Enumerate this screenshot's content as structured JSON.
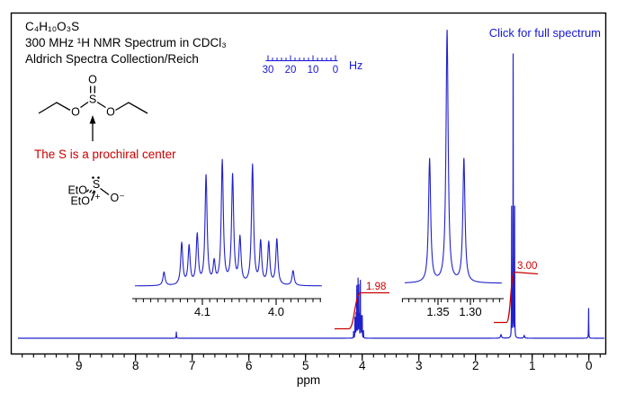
{
  "header": {
    "formula": "C₄H₁₀O₃S",
    "line2": "300 MHz ¹H NMR Spectrum in CDCl₃",
    "line3": "Aldrich Spectra Collection/Reich"
  },
  "link": {
    "label": "Click for full spectrum"
  },
  "caption": {
    "text": "The S is a prochiral center"
  },
  "structure": {
    "o_top": "O",
    "s": "S",
    "o_left": "O",
    "o_right": "O"
  },
  "zwitterion": {
    "eto_top": "EtO",
    "eto_bottom": "EtO",
    "s": "S",
    "plus": "+",
    "o_minus": "O⁻"
  },
  "colors": {
    "spectrum_blue": "#2121cc",
    "accent_blue": "#1717d6",
    "red": "#cc0000",
    "axis_black": "#000000"
  },
  "chart_data": {
    "type": "line",
    "title": "300 MHz 1H NMR spectrum of diethyl sulfite in CDCl3",
    "xlabel": "ppm",
    "x_axis": {
      "unit_label": "ppm",
      "range": [
        10.2,
        -0.32
      ],
      "minor_step": 0.2,
      "ticks": [
        {
          "label": "9",
          "ppm": 9
        },
        {
          "label": "8",
          "ppm": 8
        },
        {
          "label": "7",
          "ppm": 7
        },
        {
          "label": "6",
          "ppm": 6
        },
        {
          "label": "5",
          "ppm": 5
        },
        {
          "label": "4",
          "ppm": 4
        },
        {
          "label": "3",
          "ppm": 3
        },
        {
          "label": "2",
          "ppm": 2
        },
        {
          "label": "1",
          "ppm": 1
        },
        {
          "label": "0",
          "ppm": 0
        }
      ]
    },
    "peaks": [
      {
        "ppm": 7.28,
        "h": 0.022,
        "w": 0.0035
      },
      {
        "ppm": 4.152,
        "h": 0.023,
        "w": 0.002
      },
      {
        "ppm": 4.128,
        "h": 0.07,
        "w": 0.002
      },
      {
        "ppm": 4.118,
        "h": 0.064,
        "w": 0.002
      },
      {
        "ppm": 4.107,
        "h": 0.082,
        "w": 0.002
      },
      {
        "ppm": 4.095,
        "h": 0.18,
        "w": 0.002
      },
      {
        "ppm": 4.084,
        "h": 0.035,
        "w": 0.002
      },
      {
        "ppm": 4.073,
        "h": 0.205,
        "w": 0.002
      },
      {
        "ppm": 4.059,
        "h": 0.18,
        "w": 0.002
      },
      {
        "ppm": 4.049,
        "h": 0.076,
        "w": 0.002
      },
      {
        "ppm": 4.032,
        "h": 0.199,
        "w": 0.002
      },
      {
        "ppm": 4.021,
        "h": 0.07,
        "w": 0.002
      },
      {
        "ppm": 4.01,
        "h": 0.07,
        "w": 0.002
      },
      {
        "ppm": 3.999,
        "h": 0.076,
        "w": 0.002
      },
      {
        "ppm": 3.977,
        "h": 0.025,
        "w": 0.002
      },
      {
        "ppm": 1.55,
        "h": 0.013,
        "w": 0.01
      },
      {
        "ppm": 1.363,
        "h": 0.46,
        "w": 0.0022
      },
      {
        "ppm": 1.336,
        "h": 1.0,
        "w": 0.0022
      },
      {
        "ppm": 1.31,
        "h": 0.46,
        "w": 0.0022
      },
      {
        "ppm": 1.14,
        "h": 0.01,
        "w": 0.008
      },
      {
        "ppm": 0.004,
        "h": 0.105,
        "w": 0.0028
      }
    ],
    "integrals": [
      {
        "label": "1.98",
        "ppm": 4.06
      },
      {
        "label": "3.00",
        "ppm": 1.34
      }
    ],
    "insets": [
      {
        "name": "OCH2 multiplet expansion",
        "range": [
          4.19,
          3.94
        ],
        "minor_step": 0.01,
        "ticks": [
          {
            "label": "4.1",
            "ppm": 4.1
          },
          {
            "label": "4.0",
            "ppm": 4.0
          }
        ],
        "peaks": [
          {
            "ppm": 4.152,
            "h": 0.11
          },
          {
            "ppm": 4.128,
            "h": 0.34
          },
          {
            "ppm": 4.118,
            "h": 0.31
          },
          {
            "ppm": 4.107,
            "h": 0.4
          },
          {
            "ppm": 4.095,
            "h": 0.88
          },
          {
            "ppm": 4.084,
            "h": 0.17
          },
          {
            "ppm": 4.073,
            "h": 1.0
          },
          {
            "ppm": 4.059,
            "h": 0.88
          },
          {
            "ppm": 4.049,
            "h": 0.37
          },
          {
            "ppm": 4.032,
            "h": 0.97
          },
          {
            "ppm": 4.021,
            "h": 0.34
          },
          {
            "ppm": 4.01,
            "h": 0.34
          },
          {
            "ppm": 3.999,
            "h": 0.37
          },
          {
            "ppm": 3.977,
            "h": 0.12
          }
        ]
      },
      {
        "name": "CH3 triplet expansion",
        "range": [
          1.405,
          1.249
        ],
        "minor_step": 0.01,
        "ticks": [
          {
            "label": "1.35",
            "ppm": 1.35
          },
          {
            "label": "1.30",
            "ppm": 1.3
          }
        ],
        "peaks": [
          {
            "ppm": 1.363,
            "h": 0.49
          },
          {
            "ppm": 1.336,
            "h": 1.0
          },
          {
            "ppm": 1.31,
            "h": 0.49
          }
        ]
      }
    ],
    "hz_ruler": {
      "unit_label": "Hz",
      "range": [
        31,
        -1
      ],
      "minor_step": 2,
      "ticks": [
        {
          "label": "30",
          "hz": 30
        },
        {
          "label": "20",
          "hz": 20
        },
        {
          "label": "10",
          "hz": 10
        },
        {
          "label": "0",
          "hz": 0
        }
      ]
    }
  }
}
